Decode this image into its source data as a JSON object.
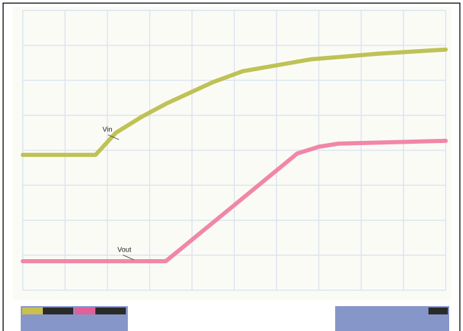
{
  "chart_data": {
    "type": "line",
    "xlim": [
      0,
      10
    ],
    "ylim": [
      0,
      8
    ],
    "xticks": [
      0,
      1,
      2,
      3,
      4,
      5,
      6,
      7,
      8,
      9,
      10
    ],
    "yticks": [
      0,
      1,
      2,
      3,
      4,
      5,
      6,
      7,
      8
    ],
    "grid": true,
    "series": [
      {
        "name": "Vin",
        "color": "#b8bb44",
        "x": [
          0,
          1.72,
          2.2,
          2.8,
          3.4,
          4.5,
          5.2,
          6.8,
          8.4,
          10
        ],
        "values": [
          3.87,
          3.87,
          4.5,
          4.95,
          5.34,
          5.95,
          6.26,
          6.6,
          6.76,
          6.88
        ]
      },
      {
        "name": "Vout",
        "color": "#f07aa0",
        "x": [
          0,
          3.38,
          6.49,
          7.0,
          7.46,
          10
        ],
        "values": [
          0.83,
          0.83,
          3.91,
          4.1,
          4.19,
          4.27
        ]
      }
    ]
  }
}
